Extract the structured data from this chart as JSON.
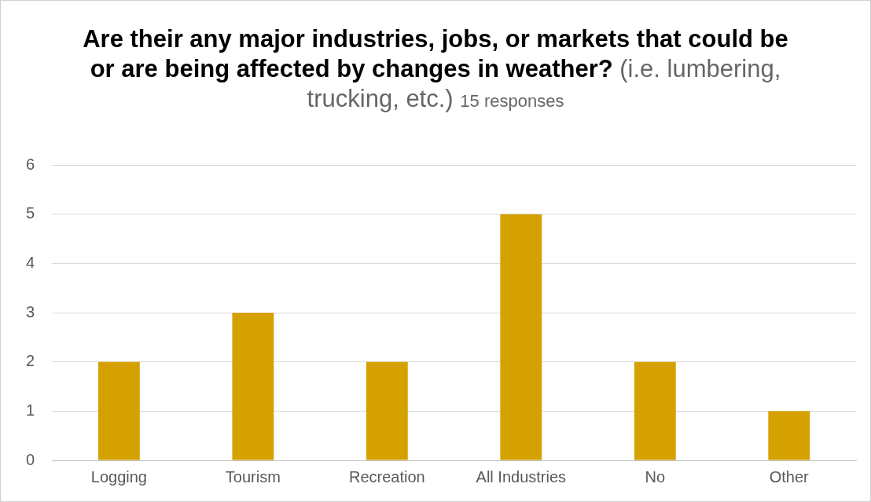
{
  "chart_data": {
    "type": "bar",
    "title": "Are their any major industries, jobs, or markets that could be or are being affected by changes in weather?",
    "subtitle": "(i.e. lumbering, trucking, etc.)",
    "annotations": [
      "15 responses"
    ],
    "categories": [
      "Logging",
      "Tourism",
      "Recreation",
      "All Industries",
      "No",
      "Other"
    ],
    "values": [
      2,
      3,
      2,
      5,
      2,
      1
    ],
    "color": "#d4a100",
    "ylim": [
      0,
      6
    ],
    "yticks": [
      0,
      1,
      2,
      3,
      4,
      5,
      6
    ],
    "grid": "y",
    "legend": false
  }
}
